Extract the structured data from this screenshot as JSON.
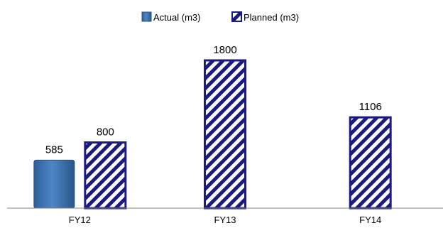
{
  "chart_data": {
    "type": "bar",
    "categories": [
      "FY12",
      "FY13",
      "FY14"
    ],
    "series": [
      {
        "name": "Actual (m3)",
        "values": [
          585,
          null,
          null
        ],
        "style": "solid",
        "color": "#3a6fb0",
        "edge_color": "#2a5080"
      },
      {
        "name": "Planned (m3)",
        "values": [
          800,
          1800,
          1106
        ],
        "style": "hatched",
        "color": "#1a1a80",
        "fill_color": "#ffffff"
      }
    ],
    "data_labels": true,
    "legend_position": "top-center",
    "axes_visible": false,
    "grid": false,
    "ylim": [
      0,
      2000
    ]
  }
}
